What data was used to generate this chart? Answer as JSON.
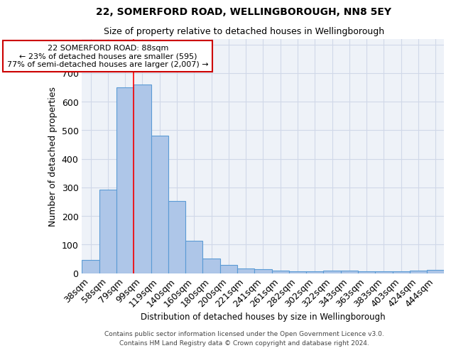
{
  "title": "22, SOMERFORD ROAD, WELLINGBOROUGH, NN8 5EY",
  "subtitle": "Size of property relative to detached houses in Wellingborough",
  "xlabel": "Distribution of detached houses by size in Wellingborough",
  "ylabel": "Number of detached properties",
  "categories": [
    "38sqm",
    "58sqm",
    "79sqm",
    "99sqm",
    "119sqm",
    "140sqm",
    "160sqm",
    "180sqm",
    "200sqm",
    "221sqm",
    "241sqm",
    "261sqm",
    "282sqm",
    "302sqm",
    "322sqm",
    "343sqm",
    "363sqm",
    "383sqm",
    "403sqm",
    "424sqm",
    "444sqm"
  ],
  "values": [
    47,
    293,
    649,
    659,
    480,
    252,
    113,
    52,
    29,
    15,
    14,
    8,
    5,
    5,
    8,
    8,
    5,
    5,
    5,
    8,
    10
  ],
  "bar_color": "#aec6e8",
  "bar_edge_color": "#5b9bd5",
  "grid_color": "#d0d8e8",
  "background_color": "#eef2f8",
  "red_line_x": 2.5,
  "annotation_text": "22 SOMERFORD ROAD: 88sqm\n← 23% of detached houses are smaller (595)\n77% of semi-detached houses are larger (2,007) →",
  "annotation_box_color": "#ffffff",
  "annotation_box_edge_color": "#cc0000",
  "ylim": [
    0,
    820
  ],
  "footer_line1": "Contains HM Land Registry data © Crown copyright and database right 2024.",
  "footer_line2": "Contains public sector information licensed under the Open Government Licence v3.0."
}
